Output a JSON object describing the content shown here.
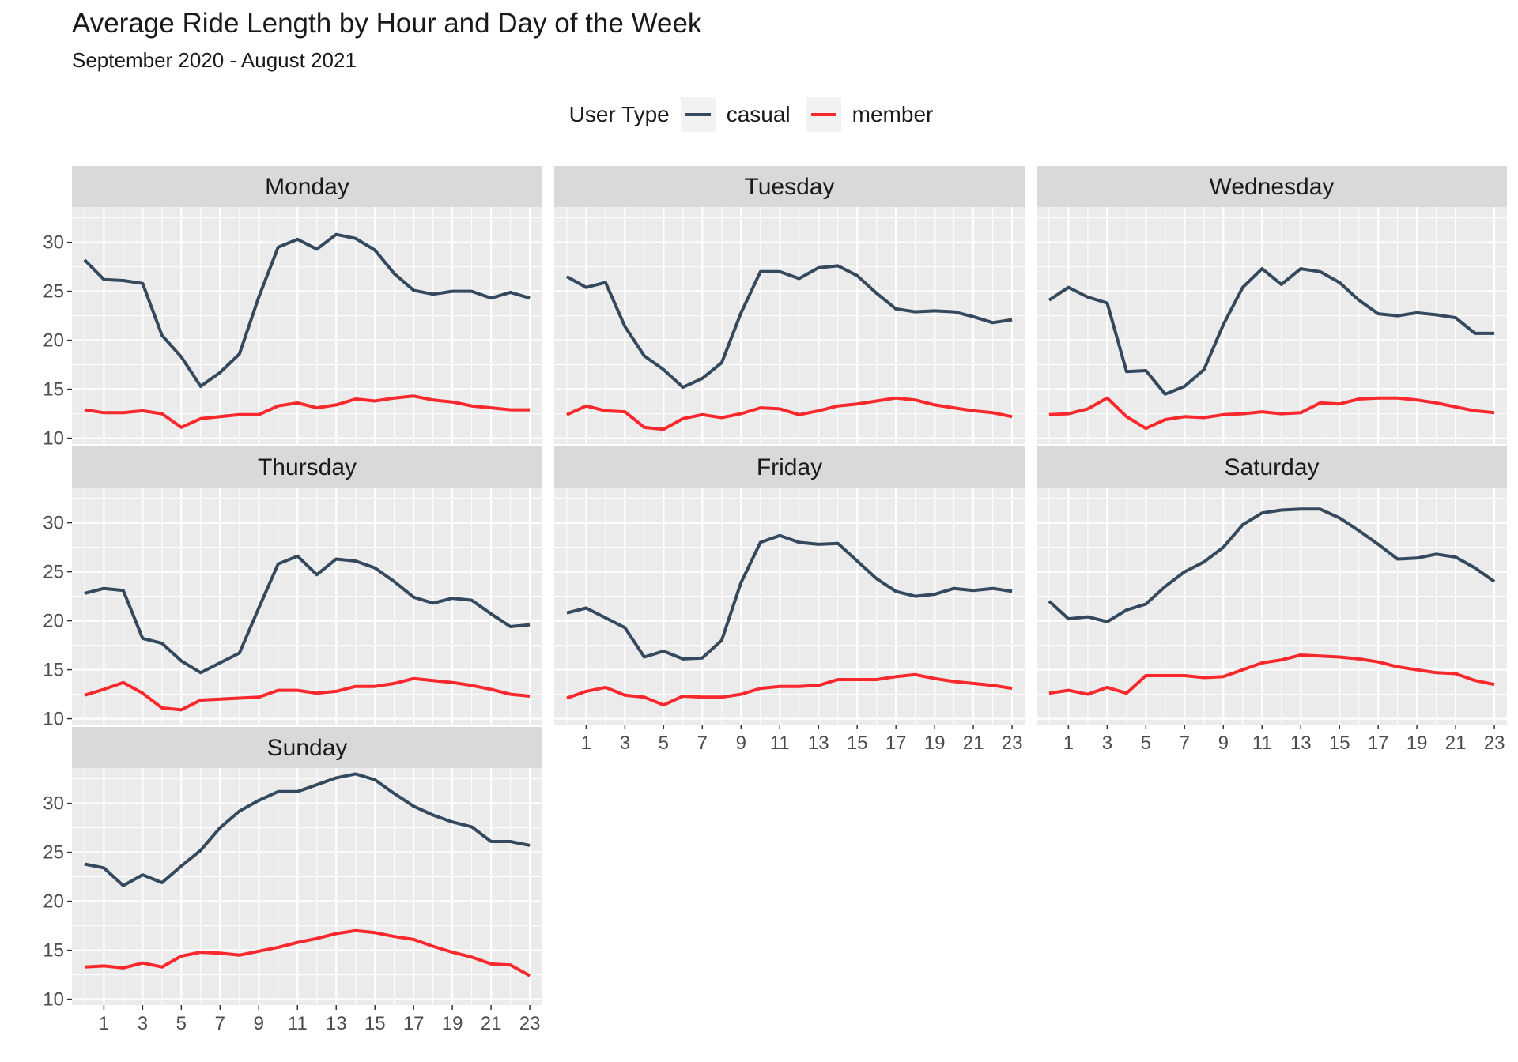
{
  "chart_data": {
    "type": "line",
    "title": "Average Ride Length by Hour and Day of the Week",
    "subtitle": "September 2020 - August 2021",
    "xlabel": "",
    "ylabel": "",
    "xlim": [
      0,
      23
    ],
    "ylim": [
      10,
      32
    ],
    "x_ticks": [
      1,
      3,
      5,
      7,
      9,
      11,
      13,
      15,
      17,
      19,
      21,
      23
    ],
    "y_ticks": [
      10,
      15,
      20,
      25,
      30
    ],
    "grid": true,
    "legend": {
      "title": "User Type",
      "placement": "top",
      "entries": [
        {
          "name": "casual",
          "color": "#34495e"
        },
        {
          "name": "member",
          "color": "#f8282c"
        }
      ]
    },
    "x": [
      0,
      1,
      2,
      3,
      4,
      5,
      6,
      7,
      8,
      9,
      10,
      11,
      12,
      13,
      14,
      15,
      16,
      17,
      18,
      19,
      20,
      21,
      22,
      23
    ],
    "panels": [
      {
        "name": "Monday",
        "series": [
          {
            "name": "casual",
            "values": [
              28.2,
              26.2,
              26.1,
              25.8,
              20.5,
              18.3,
              15.3,
              16.7,
              18.6,
              24.4,
              29.5,
              30.3,
              29.3,
              30.8,
              30.4,
              29.2,
              26.8,
              25.1,
              24.7,
              25.0,
              25.0,
              24.3,
              24.9,
              24.3
            ]
          },
          {
            "name": "member",
            "values": [
              12.9,
              12.6,
              12.6,
              12.8,
              12.5,
              11.1,
              12.0,
              12.2,
              12.4,
              12.4,
              13.3,
              13.6,
              13.1,
              13.4,
              14.0,
              13.8,
              14.1,
              14.3,
              13.9,
              13.7,
              13.3,
              13.1,
              12.9,
              12.9
            ]
          }
        ]
      },
      {
        "name": "Tuesday",
        "series": [
          {
            "name": "casual",
            "values": [
              26.5,
              25.4,
              25.9,
              21.4,
              18.4,
              17.0,
              15.2,
              16.1,
              17.7,
              22.8,
              27.0,
              27.0,
              26.3,
              27.4,
              27.6,
              26.6,
              24.8,
              23.2,
              22.9,
              23.0,
              22.9,
              22.4,
              21.8,
              22.1
            ]
          },
          {
            "name": "member",
            "values": [
              12.4,
              13.3,
              12.8,
              12.7,
              11.1,
              10.9,
              12.0,
              12.4,
              12.1,
              12.5,
              13.1,
              13.0,
              12.4,
              12.8,
              13.3,
              13.5,
              13.8,
              14.1,
              13.9,
              13.4,
              13.1,
              12.8,
              12.6,
              12.2
            ]
          }
        ]
      },
      {
        "name": "Wednesday",
        "series": [
          {
            "name": "casual",
            "values": [
              24.1,
              25.4,
              24.4,
              23.8,
              16.8,
              16.9,
              14.5,
              15.3,
              17.0,
              21.6,
              25.4,
              27.3,
              25.7,
              27.3,
              27.0,
              25.9,
              24.1,
              22.7,
              22.5,
              22.8,
              22.6,
              22.3,
              20.7,
              20.7
            ]
          },
          {
            "name": "member",
            "values": [
              12.4,
              12.5,
              13.0,
              14.1,
              12.2,
              11.0,
              11.9,
              12.2,
              12.1,
              12.4,
              12.5,
              12.7,
              12.5,
              12.6,
              13.6,
              13.5,
              14.0,
              14.1,
              14.1,
              13.9,
              13.6,
              13.2,
              12.8,
              12.6
            ]
          }
        ]
      },
      {
        "name": "Thursday",
        "series": [
          {
            "name": "casual",
            "values": [
              22.8,
              23.3,
              23.1,
              18.2,
              17.7,
              15.9,
              14.7,
              15.7,
              16.7,
              21.3,
              25.8,
              26.6,
              24.7,
              26.3,
              26.1,
              25.4,
              24.0,
              22.4,
              21.8,
              22.3,
              22.1,
              20.7,
              19.4,
              19.6
            ]
          },
          {
            "name": "member",
            "values": [
              12.4,
              13.0,
              13.7,
              12.6,
              11.1,
              10.9,
              11.9,
              12.0,
              12.1,
              12.2,
              12.9,
              12.9,
              12.6,
              12.8,
              13.3,
              13.3,
              13.6,
              14.1,
              13.9,
              13.7,
              13.4,
              13.0,
              12.5,
              12.3
            ]
          }
        ]
      },
      {
        "name": "Friday",
        "series": [
          {
            "name": "casual",
            "values": [
              20.8,
              21.3,
              20.3,
              19.3,
              16.3,
              16.9,
              16.1,
              16.2,
              18.0,
              23.9,
              28.0,
              28.7,
              28.0,
              27.8,
              27.9,
              26.1,
              24.3,
              23.0,
              22.5,
              22.7,
              23.3,
              23.1,
              23.3,
              23.0
            ]
          },
          {
            "name": "member",
            "values": [
              12.1,
              12.8,
              13.2,
              12.4,
              12.2,
              11.4,
              12.3,
              12.2,
              12.2,
              12.5,
              13.1,
              13.3,
              13.3,
              13.4,
              14.0,
              14.0,
              14.0,
              14.3,
              14.5,
              14.1,
              13.8,
              13.6,
              13.4,
              13.1
            ]
          }
        ]
      },
      {
        "name": "Saturday",
        "series": [
          {
            "name": "casual",
            "values": [
              22.0,
              20.2,
              20.4,
              19.9,
              21.1,
              21.7,
              23.5,
              25.0,
              26.0,
              27.5,
              29.8,
              31.0,
              31.3,
              31.4,
              31.4,
              30.5,
              29.2,
              27.8,
              26.3,
              26.4,
              26.8,
              26.5,
              25.4,
              24.0
            ]
          },
          {
            "name": "member",
            "values": [
              12.6,
              12.9,
              12.5,
              13.2,
              12.6,
              14.4,
              14.4,
              14.4,
              14.2,
              14.3,
              15.0,
              15.7,
              16.0,
              16.5,
              16.4,
              16.3,
              16.1,
              15.8,
              15.3,
              15.0,
              14.7,
              14.6,
              13.9,
              13.5
            ]
          }
        ]
      },
      {
        "name": "Sunday",
        "series": [
          {
            "name": "casual",
            "values": [
              23.8,
              23.4,
              21.6,
              22.7,
              21.9,
              23.6,
              25.2,
              27.5,
              29.2,
              30.3,
              31.2,
              31.2,
              31.9,
              32.6,
              33.0,
              32.4,
              31.0,
              29.7,
              28.8,
              28.1,
              27.6,
              26.1,
              26.1,
              25.7
            ]
          },
          {
            "name": "member",
            "values": [
              13.3,
              13.4,
              13.2,
              13.7,
              13.3,
              14.4,
              14.8,
              14.7,
              14.5,
              14.9,
              15.3,
              15.8,
              16.2,
              16.7,
              17.0,
              16.8,
              16.4,
              16.1,
              15.4,
              14.8,
              14.3,
              13.6,
              13.5,
              12.4
            ]
          }
        ]
      }
    ]
  }
}
